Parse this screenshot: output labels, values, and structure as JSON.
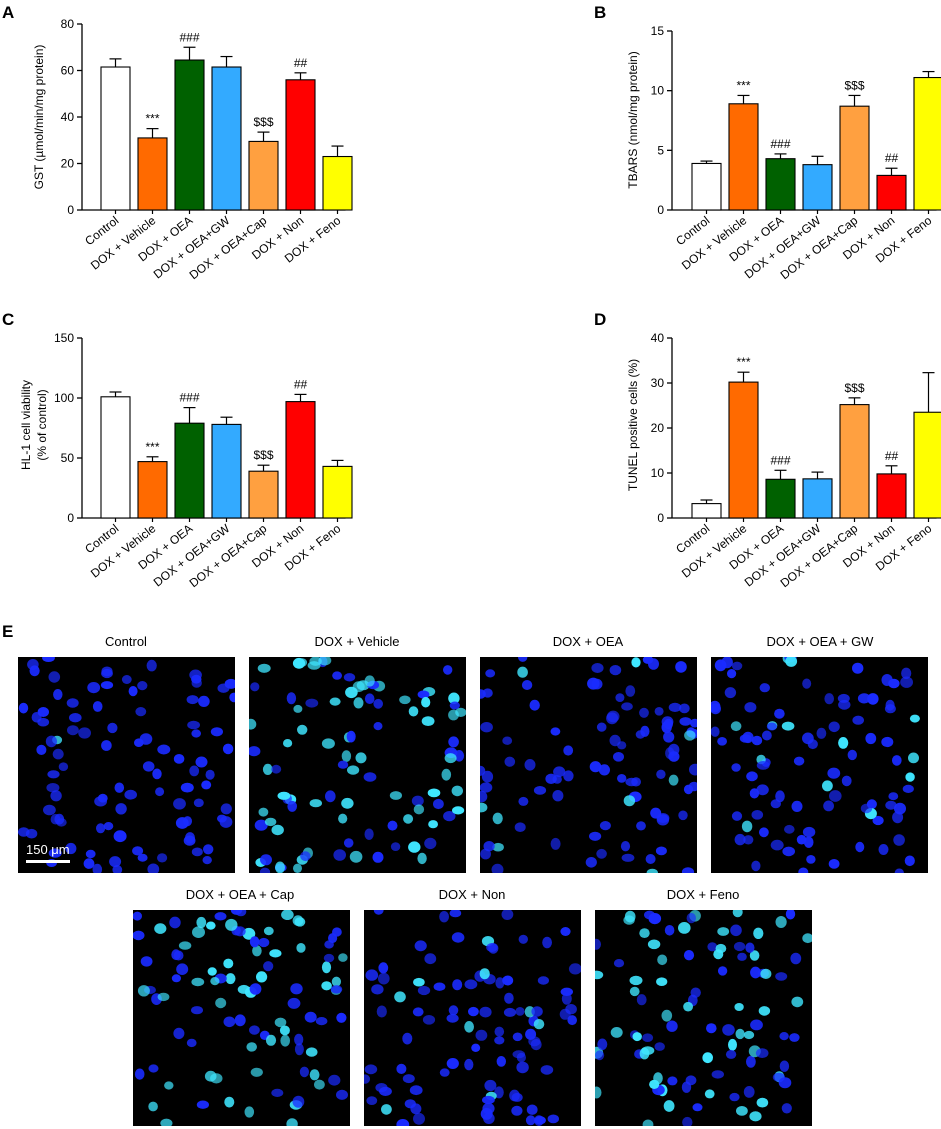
{
  "panels": [
    {
      "label": "A"
    },
    {
      "label": "B"
    },
    {
      "label": "C"
    },
    {
      "label": "D"
    },
    {
      "label": "E"
    }
  ],
  "chart_data": [
    {
      "type": "bar",
      "panel": "A",
      "ylabel": "GST (µmol/min/mg protein)",
      "ylim": [
        0,
        80
      ],
      "yticks": [
        0,
        20,
        40,
        60,
        80
      ],
      "categories": [
        "Control",
        "DOX + Vehicle",
        "DOX + OEA",
        "DOX + OEA+GW",
        "DOX + OEA+Cap",
        "DOX + Non",
        "DOX + Feno"
      ],
      "values": [
        61.5,
        31,
        64.5,
        61.5,
        29.5,
        56,
        23
      ],
      "errors": [
        3.5,
        4,
        5.5,
        4.5,
        4,
        3,
        4.5
      ],
      "annotations": [
        "",
        "***",
        "###",
        "",
        "$$$",
        "##",
        ""
      ],
      "colors": [
        "#ffffff",
        "#ff6a00",
        "#006100",
        "#33aaff",
        "#ffa040",
        "#ff0000",
        "#ffff00"
      ]
    },
    {
      "type": "bar",
      "panel": "B",
      "ylabel": "TBARS (nmol/mg protein)",
      "ylim": [
        0,
        15
      ],
      "yticks": [
        0,
        5,
        10,
        15
      ],
      "categories": [
        "Control",
        "DOX + Vehicle",
        "DOX + OEA",
        "DOX + OEA+GW",
        "DOX + OEA+Cap",
        "DOX + Non",
        "DOX + Feno"
      ],
      "values": [
        3.9,
        8.9,
        4.3,
        3.8,
        8.7,
        2.9,
        11.1
      ],
      "errors": [
        0.2,
        0.7,
        0.4,
        0.7,
        0.9,
        0.6,
        0.5
      ],
      "annotations": [
        "",
        "***",
        "###",
        "",
        "$$$",
        "##",
        ""
      ],
      "colors": [
        "#ffffff",
        "#ff6a00",
        "#006100",
        "#33aaff",
        "#ffa040",
        "#ff0000",
        "#ffff00"
      ]
    },
    {
      "type": "bar",
      "panel": "C",
      "ylabel": "HL-1 cell viability",
      "ylabel2": "(% of control)",
      "ylim": [
        0,
        150
      ],
      "yticks": [
        0,
        50,
        100,
        150
      ],
      "categories": [
        "Control",
        "DOX + Vehicle",
        "DOX + OEA",
        "DOX + OEA+GW",
        "DOX + OEA+Cap",
        "DOX + Non",
        "DOX + Feno"
      ],
      "values": [
        101,
        47,
        79,
        78,
        39,
        97,
        43
      ],
      "errors": [
        4,
        4,
        13,
        6,
        5,
        6,
        5
      ],
      "annotations": [
        "",
        "***",
        "###",
        "",
        "$$$",
        "##",
        ""
      ],
      "colors": [
        "#ffffff",
        "#ff6a00",
        "#006100",
        "#33aaff",
        "#ffa040",
        "#ff0000",
        "#ffff00"
      ]
    },
    {
      "type": "bar",
      "panel": "D",
      "ylabel": "TUNEL positive cells (%)",
      "ylim": [
        0,
        40
      ],
      "yticks": [
        0,
        10,
        20,
        30,
        40
      ],
      "categories": [
        "Control",
        "DOX + Vehicle",
        "DOX + OEA",
        "DOX + OEA+GW",
        "DOX + OEA+Cap",
        "DOX + Non",
        "DOX + Feno"
      ],
      "values": [
        3.2,
        30.2,
        8.6,
        8.7,
        25.2,
        9.8,
        23.5
      ],
      "errors": [
        0.8,
        2.2,
        2,
        1.5,
        1.5,
        1.8,
        8.8
      ],
      "annotations": [
        "",
        "***",
        "###",
        "",
        "$$$",
        "##",
        ""
      ],
      "colors": [
        "#ffffff",
        "#ff6a00",
        "#006100",
        "#33aaff",
        "#ffa040",
        "#ff0000",
        "#ffff00"
      ]
    }
  ],
  "micrographs": {
    "titles": [
      "Control",
      "DOX + Vehicle",
      "DOX + OEA",
      "DOX + OEA + GW",
      "DOX + OEA + Cap",
      "DOX + Non",
      "DOX + Feno"
    ],
    "scale_bar": "150 μm",
    "positive_fraction": [
      0.02,
      0.6,
      0.12,
      0.1,
      0.5,
      0.1,
      0.45
    ],
    "colors": {
      "nucleus": "#1a2bff",
      "positive": "#3fe6ff",
      "background": "#000000"
    }
  }
}
